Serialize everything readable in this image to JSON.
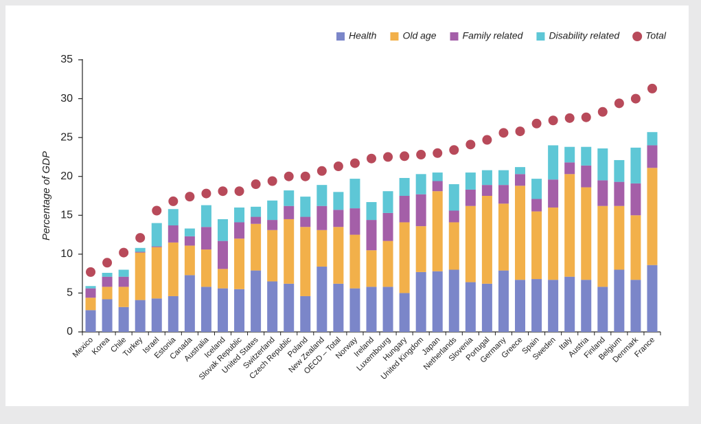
{
  "chart_data": {
    "type": "bar",
    "stacked": true,
    "ylabel": "Percentage of GDP",
    "categories": [
      "Mexico",
      "Korea",
      "Chile",
      "Turkey",
      "Israel",
      "Estonia",
      "Canada",
      "Australia",
      "Iceland",
      "Slovak Republic",
      "United States",
      "Switzerland",
      "Czech Republic",
      "Poland",
      "New Zealand",
      "OECD – Total",
      "Norway",
      "Ireland",
      "Luxembourg",
      "Hungary",
      "United Kingdom",
      "Japan",
      "Netherlands",
      "Slovenia",
      "Portugal",
      "Germany",
      "Greece",
      "Spain",
      "Sweden",
      "Italy",
      "Austria",
      "Finland",
      "Belgium",
      "Denmark",
      "France"
    ],
    "series": [
      {
        "name": "Health",
        "color": "#7b86c9",
        "values": [
          2.8,
          4.2,
          3.2,
          4.1,
          4.3,
          4.6,
          7.3,
          5.8,
          5.6,
          5.5,
          7.9,
          6.5,
          6.2,
          4.6,
          8.4,
          6.2,
          5.6,
          5.8,
          5.8,
          5.0,
          7.7,
          7.8,
          8.0,
          6.4,
          6.2,
          7.9,
          6.7,
          6.8,
          6.7,
          7.1,
          6.7,
          5.8,
          8.0,
          6.7,
          8.6
        ]
      },
      {
        "name": "Old age",
        "color": "#f2b04a",
        "values": [
          1.6,
          1.6,
          2.6,
          6.1,
          6.6,
          6.9,
          3.8,
          4.8,
          2.5,
          6.5,
          6.0,
          6.6,
          8.3,
          8.9,
          4.7,
          7.3,
          6.9,
          4.7,
          5.9,
          9.1,
          5.9,
          10.3,
          6.1,
          9.8,
          11.3,
          8.6,
          12.1,
          8.7,
          9.3,
          13.2,
          11.9,
          10.4,
          8.2,
          8.3,
          12.5
        ]
      },
      {
        "name": "Family related",
        "color": "#a45fa8",
        "values": [
          1.2,
          1.3,
          1.3,
          0.1,
          0.1,
          2.2,
          1.2,
          2.9,
          3.6,
          2.1,
          0.9,
          1.3,
          1.7,
          1.3,
          3.1,
          2.2,
          3.4,
          3.9,
          3.6,
          3.4,
          4.1,
          1.3,
          1.5,
          2.1,
          1.4,
          2.4,
          1.5,
          1.6,
          3.6,
          1.5,
          2.8,
          3.3,
          3.1,
          4.1,
          2.9
        ]
      },
      {
        "name": "Disability related",
        "color": "#5ec7d6",
        "values": [
          0.3,
          0.5,
          0.9,
          0.5,
          3.0,
          2.1,
          1.0,
          2.8,
          2.8,
          1.9,
          1.3,
          2.5,
          2.0,
          2.6,
          2.7,
          2.3,
          3.8,
          2.3,
          2.8,
          2.3,
          2.6,
          1.1,
          3.4,
          2.2,
          1.9,
          1.9,
          0.9,
          2.6,
          4.4,
          2.0,
          2.4,
          4.1,
          2.8,
          4.6,
          1.7
        ]
      },
      {
        "name": "Total",
        "type": "scatter",
        "color": "#b84a5a",
        "values": [
          7.7,
          8.9,
          10.2,
          12.1,
          15.6,
          16.8,
          17.4,
          17.8,
          18.1,
          18.1,
          19.0,
          19.4,
          20.0,
          20.0,
          20.7,
          21.3,
          21.7,
          22.3,
          22.5,
          22.6,
          22.8,
          23.0,
          23.4,
          24.1,
          24.7,
          25.6,
          25.8,
          26.8,
          27.2,
          27.5,
          27.6,
          28.3,
          29.4,
          30.0,
          31.3
        ]
      }
    ],
    "ylim": [
      0,
      35
    ],
    "yticks": [
      0,
      5,
      10,
      15,
      20,
      25,
      30,
      35
    ],
    "grid": false
  }
}
